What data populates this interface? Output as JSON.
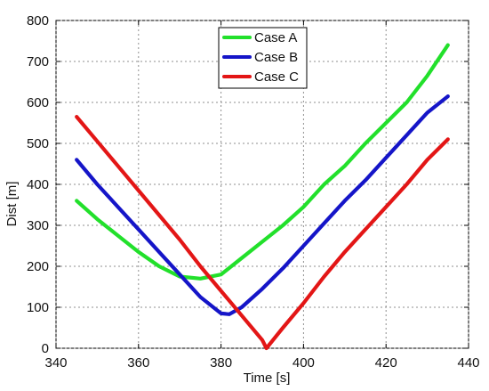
{
  "chart_data": {
    "type": "line",
    "title": "",
    "xlabel": "Time [s]",
    "ylabel": "Dist [m]",
    "xlim": [
      340,
      440
    ],
    "ylim": [
      0,
      800
    ],
    "xticks": [
      "340",
      "360",
      "380",
      "400",
      "420",
      "440"
    ],
    "yticks": [
      "0",
      "100",
      "200",
      "300",
      "400",
      "500",
      "600",
      "700",
      "800"
    ],
    "grid": true,
    "legend_position": "top-center",
    "series": [
      {
        "name": "Case A",
        "color": "#22e02b",
        "x": [
          345,
          350,
          355,
          360,
          365,
          370,
          375,
          380,
          385,
          390,
          395,
          400,
          405,
          410,
          415,
          420,
          425,
          430,
          435
        ],
        "y": [
          360,
          315,
          275,
          235,
          200,
          175,
          170,
          180,
          220,
          260,
          300,
          345,
          400,
          445,
          500,
          550,
          600,
          665,
          740
        ]
      },
      {
        "name": "Case B",
        "color": "#1515c8",
        "x": [
          345,
          350,
          355,
          360,
          365,
          370,
          375,
          380,
          382,
          385,
          390,
          395,
          400,
          405,
          410,
          415,
          420,
          425,
          430,
          435
        ],
        "y": [
          460,
          400,
          345,
          290,
          235,
          180,
          125,
          85,
          83,
          100,
          145,
          195,
          250,
          305,
          360,
          410,
          465,
          520,
          575,
          615
        ]
      },
      {
        "name": "Case C",
        "color": "#e31616",
        "x": [
          345,
          350,
          355,
          360,
          365,
          370,
          375,
          380,
          385,
          390,
          391,
          395,
          400,
          405,
          410,
          415,
          420,
          425,
          430,
          435
        ],
        "y": [
          565,
          505,
          445,
          385,
          325,
          265,
          200,
          140,
          80,
          20,
          0,
          50,
          110,
          175,
          235,
          290,
          345,
          400,
          460,
          510
        ]
      }
    ]
  }
}
